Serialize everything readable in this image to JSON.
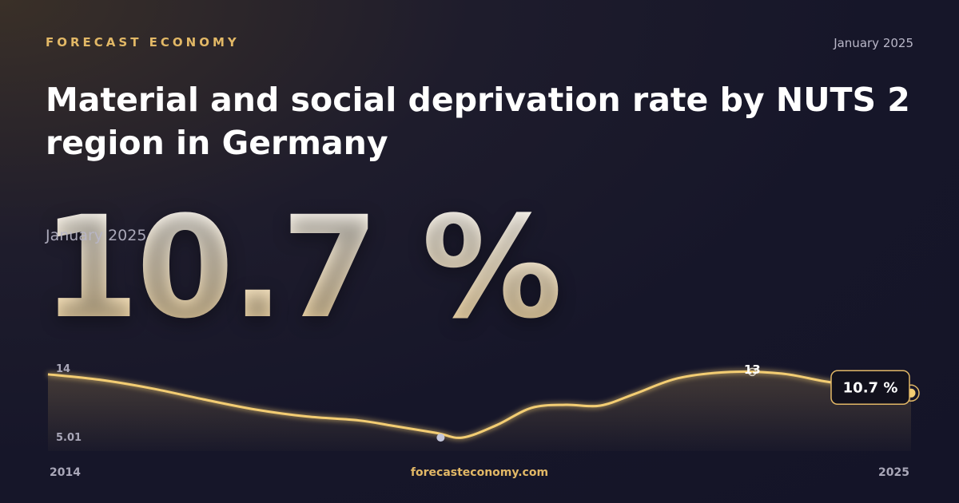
{
  "brand": "FORECAST ECONOMY",
  "date": "January 2025",
  "title": "Material and social deprivation rate by NUTS 2 region in Germany",
  "headline_value": "10.7 %",
  "headline_date": "January 2025",
  "footer": {
    "url": "forecasteconomy.com"
  },
  "colors": {
    "accent": "#e2b866",
    "line": "#f3cd73",
    "background": "#161629"
  },
  "chart_data": {
    "type": "line",
    "x_start_label": "2014",
    "x_end_label": "2025",
    "y_max_label": "14",
    "y_min_label": "5.01",
    "ylim": [
      5.01,
      14
    ],
    "x": [
      0,
      0.06,
      0.12,
      0.18,
      0.24,
      0.3,
      0.36,
      0.4,
      0.45,
      0.48,
      0.52,
      0.56,
      0.6,
      0.64,
      0.68,
      0.73,
      0.79,
      0.85,
      0.9,
      0.95,
      1
    ],
    "values": [
      13.1,
      12.4,
      11.3,
      9.9,
      8.6,
      7.7,
      7.2,
      6.5,
      5.6,
      5.0,
      6.6,
      8.8,
      9.2,
      9.1,
      10.6,
      12.6,
      13.4,
      13.2,
      12.2,
      11.4,
      10.7
    ],
    "annotations": [
      {
        "label": "13",
        "x": 0.816,
        "value": 13.4,
        "marker": "ring"
      },
      {
        "x": 0.455,
        "value": 5.0,
        "marker": "dot"
      }
    ],
    "last_point_label": "10.7 %"
  }
}
